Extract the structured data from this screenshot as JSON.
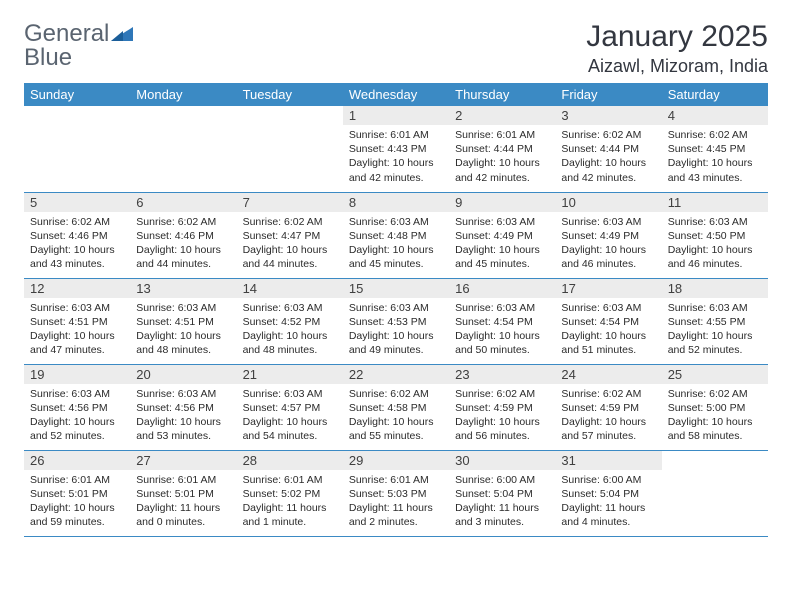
{
  "brand": {
    "part1": "General",
    "part2": "Blue"
  },
  "title": "January 2025",
  "location": "Aizawl, Mizoram, India",
  "colors": {
    "header_bg": "#3b8ac4",
    "header_text": "#ffffff",
    "daynum_bg": "#ececec",
    "border": "#3b8ac4",
    "logo_gray": "#5a6470",
    "logo_blue": "#2f77b8",
    "title_color": "#333740"
  },
  "weekdays": [
    "Sunday",
    "Monday",
    "Tuesday",
    "Wednesday",
    "Thursday",
    "Friday",
    "Saturday"
  ],
  "weeks": [
    [
      {
        "n": "",
        "sunrise": "",
        "sunset": "",
        "daylight": "",
        "empty": true
      },
      {
        "n": "",
        "sunrise": "",
        "sunset": "",
        "daylight": "",
        "empty": true
      },
      {
        "n": "",
        "sunrise": "",
        "sunset": "",
        "daylight": "",
        "empty": true
      },
      {
        "n": "1",
        "sunrise": "Sunrise: 6:01 AM",
        "sunset": "Sunset: 4:43 PM",
        "daylight": "Daylight: 10 hours and 42 minutes."
      },
      {
        "n": "2",
        "sunrise": "Sunrise: 6:01 AM",
        "sunset": "Sunset: 4:44 PM",
        "daylight": "Daylight: 10 hours and 42 minutes."
      },
      {
        "n": "3",
        "sunrise": "Sunrise: 6:02 AM",
        "sunset": "Sunset: 4:44 PM",
        "daylight": "Daylight: 10 hours and 42 minutes."
      },
      {
        "n": "4",
        "sunrise": "Sunrise: 6:02 AM",
        "sunset": "Sunset: 4:45 PM",
        "daylight": "Daylight: 10 hours and 43 minutes."
      }
    ],
    [
      {
        "n": "5",
        "sunrise": "Sunrise: 6:02 AM",
        "sunset": "Sunset: 4:46 PM",
        "daylight": "Daylight: 10 hours and 43 minutes."
      },
      {
        "n": "6",
        "sunrise": "Sunrise: 6:02 AM",
        "sunset": "Sunset: 4:46 PM",
        "daylight": "Daylight: 10 hours and 44 minutes."
      },
      {
        "n": "7",
        "sunrise": "Sunrise: 6:02 AM",
        "sunset": "Sunset: 4:47 PM",
        "daylight": "Daylight: 10 hours and 44 minutes."
      },
      {
        "n": "8",
        "sunrise": "Sunrise: 6:03 AM",
        "sunset": "Sunset: 4:48 PM",
        "daylight": "Daylight: 10 hours and 45 minutes."
      },
      {
        "n": "9",
        "sunrise": "Sunrise: 6:03 AM",
        "sunset": "Sunset: 4:49 PM",
        "daylight": "Daylight: 10 hours and 45 minutes."
      },
      {
        "n": "10",
        "sunrise": "Sunrise: 6:03 AM",
        "sunset": "Sunset: 4:49 PM",
        "daylight": "Daylight: 10 hours and 46 minutes."
      },
      {
        "n": "11",
        "sunrise": "Sunrise: 6:03 AM",
        "sunset": "Sunset: 4:50 PM",
        "daylight": "Daylight: 10 hours and 46 minutes."
      }
    ],
    [
      {
        "n": "12",
        "sunrise": "Sunrise: 6:03 AM",
        "sunset": "Sunset: 4:51 PM",
        "daylight": "Daylight: 10 hours and 47 minutes."
      },
      {
        "n": "13",
        "sunrise": "Sunrise: 6:03 AM",
        "sunset": "Sunset: 4:51 PM",
        "daylight": "Daylight: 10 hours and 48 minutes."
      },
      {
        "n": "14",
        "sunrise": "Sunrise: 6:03 AM",
        "sunset": "Sunset: 4:52 PM",
        "daylight": "Daylight: 10 hours and 48 minutes."
      },
      {
        "n": "15",
        "sunrise": "Sunrise: 6:03 AM",
        "sunset": "Sunset: 4:53 PM",
        "daylight": "Daylight: 10 hours and 49 minutes."
      },
      {
        "n": "16",
        "sunrise": "Sunrise: 6:03 AM",
        "sunset": "Sunset: 4:54 PM",
        "daylight": "Daylight: 10 hours and 50 minutes."
      },
      {
        "n": "17",
        "sunrise": "Sunrise: 6:03 AM",
        "sunset": "Sunset: 4:54 PM",
        "daylight": "Daylight: 10 hours and 51 minutes."
      },
      {
        "n": "18",
        "sunrise": "Sunrise: 6:03 AM",
        "sunset": "Sunset: 4:55 PM",
        "daylight": "Daylight: 10 hours and 52 minutes."
      }
    ],
    [
      {
        "n": "19",
        "sunrise": "Sunrise: 6:03 AM",
        "sunset": "Sunset: 4:56 PM",
        "daylight": "Daylight: 10 hours and 52 minutes."
      },
      {
        "n": "20",
        "sunrise": "Sunrise: 6:03 AM",
        "sunset": "Sunset: 4:56 PM",
        "daylight": "Daylight: 10 hours and 53 minutes."
      },
      {
        "n": "21",
        "sunrise": "Sunrise: 6:03 AM",
        "sunset": "Sunset: 4:57 PM",
        "daylight": "Daylight: 10 hours and 54 minutes."
      },
      {
        "n": "22",
        "sunrise": "Sunrise: 6:02 AM",
        "sunset": "Sunset: 4:58 PM",
        "daylight": "Daylight: 10 hours and 55 minutes."
      },
      {
        "n": "23",
        "sunrise": "Sunrise: 6:02 AM",
        "sunset": "Sunset: 4:59 PM",
        "daylight": "Daylight: 10 hours and 56 minutes."
      },
      {
        "n": "24",
        "sunrise": "Sunrise: 6:02 AM",
        "sunset": "Sunset: 4:59 PM",
        "daylight": "Daylight: 10 hours and 57 minutes."
      },
      {
        "n": "25",
        "sunrise": "Sunrise: 6:02 AM",
        "sunset": "Sunset: 5:00 PM",
        "daylight": "Daylight: 10 hours and 58 minutes."
      }
    ],
    [
      {
        "n": "26",
        "sunrise": "Sunrise: 6:01 AM",
        "sunset": "Sunset: 5:01 PM",
        "daylight": "Daylight: 10 hours and 59 minutes."
      },
      {
        "n": "27",
        "sunrise": "Sunrise: 6:01 AM",
        "sunset": "Sunset: 5:01 PM",
        "daylight": "Daylight: 11 hours and 0 minutes."
      },
      {
        "n": "28",
        "sunrise": "Sunrise: 6:01 AM",
        "sunset": "Sunset: 5:02 PM",
        "daylight": "Daylight: 11 hours and 1 minute."
      },
      {
        "n": "29",
        "sunrise": "Sunrise: 6:01 AM",
        "sunset": "Sunset: 5:03 PM",
        "daylight": "Daylight: 11 hours and 2 minutes."
      },
      {
        "n": "30",
        "sunrise": "Sunrise: 6:00 AM",
        "sunset": "Sunset: 5:04 PM",
        "daylight": "Daylight: 11 hours and 3 minutes."
      },
      {
        "n": "31",
        "sunrise": "Sunrise: 6:00 AM",
        "sunset": "Sunset: 5:04 PM",
        "daylight": "Daylight: 11 hours and 4 minutes."
      },
      {
        "n": "",
        "sunrise": "",
        "sunset": "",
        "daylight": "",
        "empty": true
      }
    ]
  ]
}
